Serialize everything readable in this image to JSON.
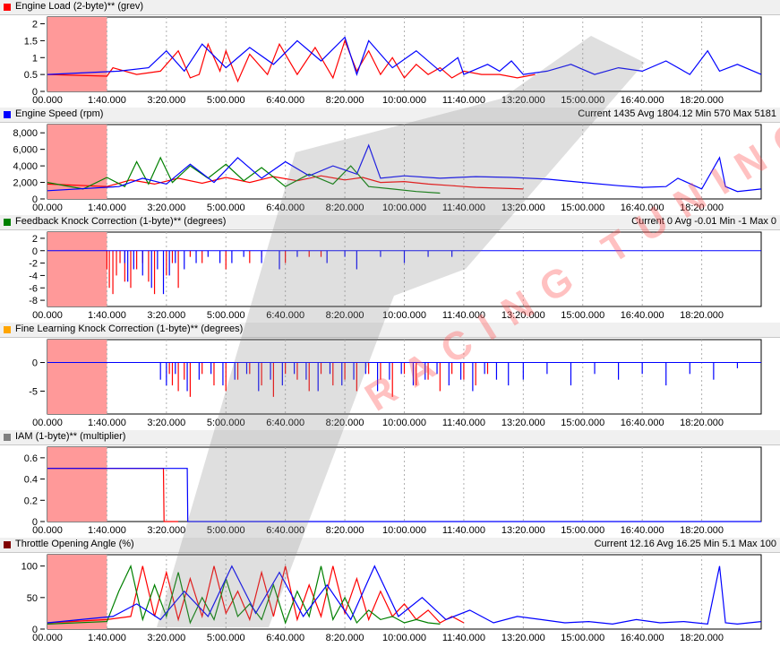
{
  "colors": {
    "red": "#ff0000",
    "blue": "#0000ff",
    "green": "#008000",
    "shade": "#ff9999",
    "grid": "#b0b0b0",
    "panel_bg": "#f0f0f0"
  },
  "watermark": {
    "text": "RACING TUNING"
  },
  "time_ticks": [
    "00.000",
    "1:40.000",
    "3:20.000",
    "5:00.000",
    "6:40.000",
    "8:20.000",
    "10:00.000",
    "11:40.000",
    "13:20.000",
    "15:00.000",
    "16:40.000",
    "18:20.000"
  ],
  "chart_data": [
    {
      "type": "line",
      "title": "Engine Load (2-byte)** (grev)",
      "swatch_color": "#ff0000",
      "stats": "",
      "y_ticks": [
        "2",
        "1.5",
        "1",
        "0.5",
        "0"
      ],
      "ylim": [
        0,
        2.2
      ],
      "grid": true,
      "series": [
        {
          "color": "#ff0000",
          "x": [
            0,
            100,
            110,
            150,
            190,
            220,
            240,
            255,
            270,
            290,
            300,
            320,
            340,
            370,
            390,
            420,
            450,
            480,
            500,
            520,
            540,
            560,
            580,
            600,
            620,
            640,
            660,
            680,
            700,
            730,
            760,
            790,
            820
          ],
          "y": [
            0.5,
            0.45,
            0.7,
            0.5,
            0.6,
            1.2,
            0.4,
            0.5,
            1.4,
            0.6,
            1.2,
            0.3,
            1.1,
            0.5,
            1.4,
            0.5,
            1.3,
            0.4,
            1.5,
            0.6,
            1.2,
            0.5,
            1.0,
            0.4,
            0.8,
            0.5,
            0.7,
            0.4,
            0.6,
            0.5,
            0.5,
            0.4,
            0.5
          ]
        },
        {
          "color": "#0000ff",
          "x": [
            0,
            120,
            170,
            200,
            230,
            260,
            300,
            340,
            380,
            420,
            460,
            500,
            520,
            540,
            580,
            620,
            660,
            690,
            700,
            740,
            760,
            780,
            800,
            840,
            880,
            920,
            960,
            1000,
            1040,
            1080,
            1110,
            1130,
            1160,
            1200
          ],
          "y": [
            0.5,
            0.6,
            0.7,
            1.2,
            0.6,
            1.4,
            0.7,
            1.3,
            0.8,
            1.5,
            0.9,
            1.6,
            0.5,
            1.5,
            0.7,
            1.2,
            0.6,
            1.0,
            0.5,
            0.8,
            0.6,
            0.9,
            0.5,
            0.6,
            0.8,
            0.5,
            0.7,
            0.6,
            0.9,
            0.5,
            1.2,
            0.6,
            0.8,
            0.5
          ]
        }
      ]
    },
    {
      "type": "line",
      "title": "Engine Speed (rpm)",
      "swatch_color": "#0000ff",
      "stats": "Current 1435 Avg 1804.12 Min 570 Max 5181",
      "y_ticks": [
        "8,000",
        "6,000",
        "4,000",
        "2,000",
        "0"
      ],
      "ylim": [
        0,
        9000
      ],
      "grid": true,
      "series": [
        {
          "color": "#ff0000",
          "x": [
            0,
            100,
            140,
            180,
            220,
            260,
            300,
            340,
            380,
            420,
            460,
            500,
            530,
            560,
            600,
            640,
            680,
            720,
            760,
            800
          ],
          "y": [
            1800,
            1500,
            2300,
            1800,
            2500,
            1900,
            2600,
            2000,
            2700,
            2200,
            2800,
            2300,
            2600,
            2000,
            2100,
            1800,
            1600,
            1400,
            1300,
            1200
          ]
        },
        {
          "color": "#008000",
          "x": [
            0,
            60,
            100,
            130,
            150,
            170,
            190,
            210,
            240,
            270,
            300,
            330,
            360,
            400,
            440,
            480,
            510,
            540,
            580,
            620,
            660
          ],
          "y": [
            2000,
            1200,
            2600,
            1500,
            4500,
            1800,
            5000,
            2000,
            4000,
            2500,
            4200,
            2200,
            3800,
            1500,
            3000,
            1800,
            4000,
            1500,
            1200,
            900,
            700
          ]
        },
        {
          "color": "#0000ff",
          "x": [
            0,
            120,
            160,
            200,
            240,
            280,
            320,
            360,
            400,
            440,
            480,
            520,
            540,
            560,
            600,
            660,
            720,
            780,
            840,
            900,
            960,
            1000,
            1040,
            1060,
            1100,
            1130,
            1140,
            1160,
            1200
          ],
          "y": [
            1000,
            1500,
            2500,
            1800,
            4200,
            2000,
            5000,
            2500,
            4500,
            2800,
            4000,
            3000,
            6500,
            2500,
            2800,
            2500,
            2700,
            2600,
            2400,
            2000,
            1600,
            1400,
            1500,
            2500,
            1200,
            5000,
            1500,
            900,
            1200
          ]
        }
      ]
    },
    {
      "type": "bar",
      "title": "Feedback Knock Correction (1-byte)** (degrees)",
      "swatch_color": "#008000",
      "stats": "Current 0 Avg -0.01 Min -1 Max 0",
      "y_ticks": [
        "2",
        "0",
        "-2",
        "-4",
        "-6",
        "-8"
      ],
      "ylim": [
        -9,
        3
      ],
      "grid": true,
      "series": [
        {
          "color": "#ff0000",
          "x": [
            100,
            104,
            110,
            116,
            122,
            130,
            140,
            150,
            160,
            170,
            180,
            200,
            210,
            220,
            240,
            260,
            300,
            340,
            360,
            400,
            440,
            460
          ],
          "y": [
            -3,
            -6,
            -7,
            -4,
            -2,
            -5,
            -6,
            -3,
            -2,
            -5,
            -7,
            -4,
            -2,
            -6,
            -1,
            -2,
            -3,
            -2,
            -1,
            -2,
            -1,
            -1
          ]
        },
        {
          "color": "#0000ff",
          "x": [
            130,
            135,
            145,
            160,
            175,
            185,
            195,
            205,
            215,
            230,
            250,
            270,
            290,
            310,
            330,
            360,
            390,
            420,
            470,
            500,
            520,
            560,
            600,
            640,
            680
          ],
          "y": [
            -2,
            -5,
            -3,
            -4,
            -6,
            -3,
            -7,
            -4,
            -2,
            -3,
            -2,
            -1,
            -2,
            -2,
            -1,
            -2,
            -3,
            -1,
            -2,
            -1,
            -3,
            -1,
            -2,
            -1,
            -1
          ]
        }
      ]
    },
    {
      "type": "bar",
      "title": "Fine Learning Knock Correction (1-byte)** (degrees)",
      "swatch_color": "#ffa500",
      "stats": "",
      "y_ticks": [
        "0",
        "-5"
      ],
      "ylim": [
        -9,
        4
      ],
      "grid": true,
      "series": [
        {
          "color": "#ff0000",
          "x": [
            205,
            210,
            220,
            230,
            240,
            260,
            280,
            300,
            320,
            340,
            360,
            380,
            400,
            420,
            440,
            460,
            480,
            500,
            520,
            540,
            560,
            580,
            600,
            620,
            640,
            660,
            680,
            700,
            720,
            740
          ],
          "y": [
            -2,
            -4,
            -5,
            -3,
            -6,
            -2,
            -4,
            -5,
            -3,
            -2,
            -4,
            -6,
            -2,
            -3,
            -5,
            -2,
            -4,
            -3,
            -5,
            -2,
            -3,
            -6,
            -2,
            -4,
            -3,
            -5,
            -2,
            -3,
            -4,
            -2
          ]
        },
        {
          "color": "#0000ff",
          "x": [
            190,
            200,
            215,
            235,
            255,
            275,
            295,
            315,
            335,
            355,
            375,
            395,
            415,
            435,
            455,
            475,
            495,
            515,
            535,
            555,
            575,
            595,
            615,
            635,
            655,
            675,
            695,
            715,
            735,
            755,
            775,
            800,
            840,
            880,
            920,
            960,
            1000,
            1040,
            1080,
            1120,
            1160
          ],
          "y": [
            -3,
            -4,
            -2,
            -5,
            -3,
            -2,
            -4,
            -3,
            -2,
            -5,
            -3,
            -4,
            -2,
            -3,
            -5,
            -2,
            -4,
            -3,
            -2,
            -5,
            -3,
            -2,
            -4,
            -3,
            -2,
            -4,
            -3,
            -5,
            -2,
            -3,
            -4,
            -3,
            -2,
            -4,
            -2,
            -3,
            -2,
            -4,
            -2,
            -3,
            -1
          ]
        }
      ]
    },
    {
      "type": "line",
      "title": "IAM (1-byte)** (multiplier)",
      "swatch_color": "#808080",
      "stats": "",
      "y_ticks": [
        "0.6",
        "0.4",
        "0.2",
        "0"
      ],
      "ylim": [
        0,
        0.7
      ],
      "grid": true,
      "series": [
        {
          "color": "#ff0000",
          "x": [
            0,
            195,
            196,
            220
          ],
          "y": [
            0.5,
            0.5,
            0,
            0
          ]
        },
        {
          "color": "#0000ff",
          "x": [
            0,
            235,
            236,
            1200
          ],
          "y": [
            0.5,
            0.5,
            0,
            0
          ]
        }
      ]
    },
    {
      "type": "line",
      "title": "Throttle Opening Angle (%)",
      "swatch_color": "#800000",
      "stats": "Current 12.16 Avg 16.25 Min 5.1 Max 100",
      "y_ticks": [
        "100",
        "50",
        "0"
      ],
      "ylim": [
        0,
        118
      ],
      "grid": true,
      "series": [
        {
          "color": "#ff0000",
          "x": [
            0,
            100,
            140,
            160,
            180,
            200,
            220,
            240,
            260,
            280,
            300,
            320,
            340,
            360,
            380,
            400,
            420,
            440,
            460,
            480,
            500,
            520,
            540,
            560,
            580,
            600,
            620,
            640,
            660,
            680,
            700
          ],
          "y": [
            10,
            15,
            20,
            100,
            20,
            90,
            15,
            80,
            20,
            100,
            25,
            60,
            15,
            90,
            20,
            100,
            15,
            70,
            20,
            100,
            25,
            80,
            15,
            60,
            20,
            40,
            15,
            30,
            10,
            20,
            10
          ]
        },
        {
          "color": "#008000",
          "x": [
            0,
            100,
            120,
            140,
            160,
            180,
            200,
            220,
            240,
            260,
            280,
            300,
            320,
            340,
            360,
            380,
            400,
            420,
            440,
            460,
            480,
            500,
            520,
            540,
            560,
            580,
            600,
            620,
            640,
            660
          ],
          "y": [
            8,
            12,
            60,
            100,
            15,
            70,
            20,
            90,
            10,
            50,
            15,
            80,
            20,
            40,
            15,
            70,
            10,
            60,
            20,
            100,
            15,
            50,
            10,
            30,
            15,
            20,
            10,
            15,
            10,
            8
          ]
        },
        {
          "color": "#0000ff",
          "x": [
            0,
            110,
            150,
            190,
            230,
            270,
            310,
            350,
            390,
            430,
            470,
            510,
            550,
            590,
            630,
            670,
            710,
            750,
            790,
            830,
            870,
            910,
            950,
            990,
            1030,
            1070,
            1110,
            1130,
            1140,
            1160,
            1200
          ],
          "y": [
            10,
            20,
            40,
            15,
            60,
            20,
            100,
            25,
            90,
            20,
            70,
            15,
            100,
            20,
            50,
            15,
            30,
            10,
            20,
            15,
            10,
            12,
            8,
            15,
            10,
            12,
            8,
            100,
            10,
            8,
            12
          ]
        }
      ]
    }
  ]
}
